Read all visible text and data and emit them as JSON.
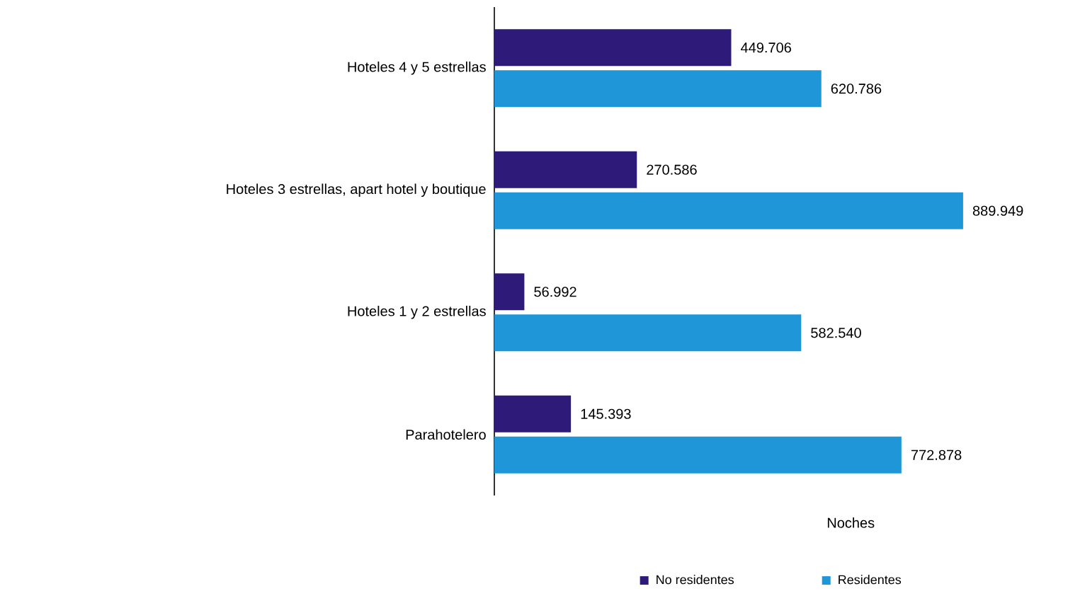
{
  "chart_data": {
    "type": "bar",
    "orientation": "horizontal",
    "xlabel": "Noches",
    "categories": [
      "Hoteles 4 y 5 estrellas",
      "Hoteles 3 estrellas, apart hotel y boutique",
      "Hoteles 1 y 2 estrellas",
      "Parahotelero"
    ],
    "series": [
      {
        "name": "No residentes",
        "color": "#2e1a78",
        "values": [
          449706,
          270586,
          56992,
          145393
        ],
        "value_labels": [
          "449.706",
          "270.586",
          "56.992",
          "145.393"
        ]
      },
      {
        "name": "Residentes",
        "color": "#1f96d8",
        "values": [
          620786,
          889949,
          582540,
          772878
        ],
        "value_labels": [
          "620.786",
          "889.949",
          "582.540",
          "772.878"
        ]
      }
    ],
    "legend": "bottom"
  }
}
